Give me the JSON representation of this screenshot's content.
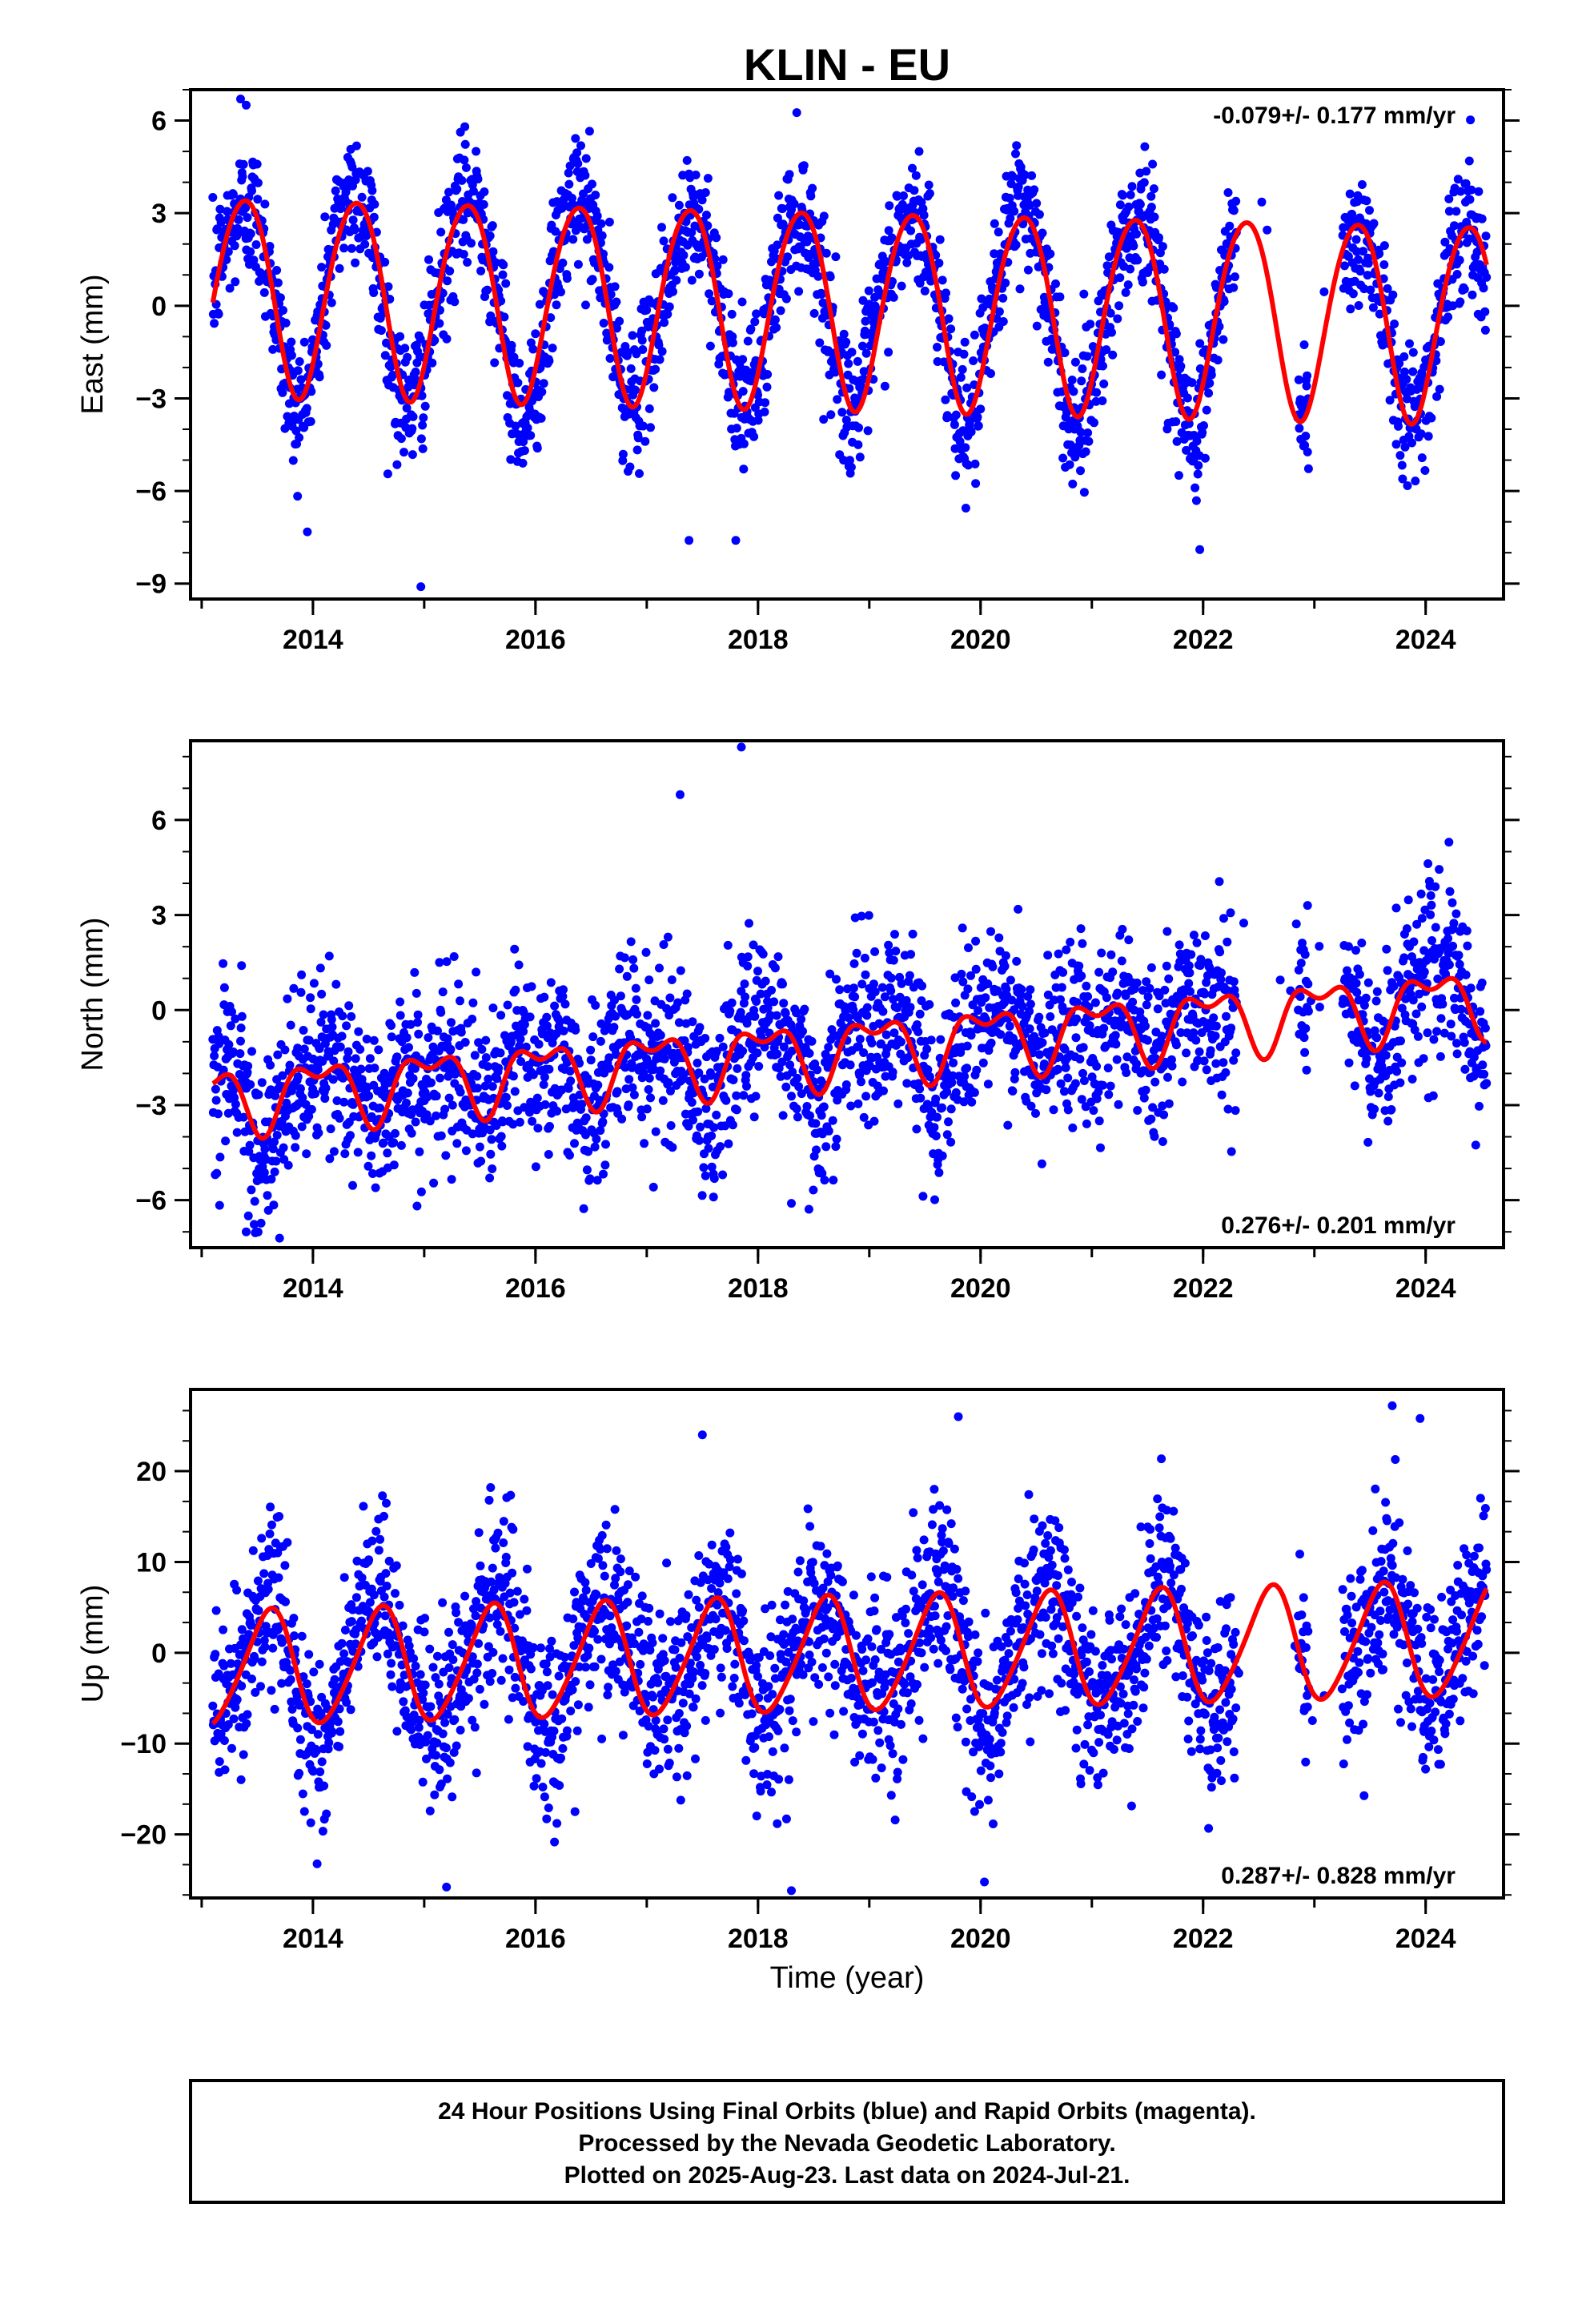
{
  "title": "KLIN - EU",
  "xlabel": "Time (year)",
  "footer": {
    "line1": "24 Hour Positions Using Final Orbits (blue) and Rapid Orbits (magenta).",
    "line2": "Processed by the Nevada Geodetic Laboratory.",
    "line3": "Plotted on 2025-Aug-23. Last data on 2024-Jul-21."
  },
  "colors": {
    "points": "#0000ff",
    "model": "#ff0000",
    "axis": "#000000"
  },
  "chart_data": [
    {
      "type": "scatter",
      "component": "east",
      "ylabel": "East (mm)",
      "rate": "-0.079+/- 0.177 mm/yr",
      "rate_placement": "top-right",
      "xlim": [
        2012.9,
        2024.7
      ],
      "ylim": [
        -9.5,
        7
      ],
      "xticks": [
        2014,
        2016,
        2018,
        2020,
        2022,
        2024
      ],
      "yticks": [
        -9,
        -6,
        -3,
        0,
        3,
        6
      ],
      "yticklabels": [
        "−9",
        "−6",
        "−3",
        "0",
        "3",
        "6"
      ],
      "data_range": [
        2013.1,
        2024.55
      ],
      "gaps": [
        [
          2022.3,
          2022.85
        ],
        [
          2022.95,
          2023.25
        ]
      ],
      "model": {
        "offset": 0.0,
        "trend": -0.079,
        "t0": 2018.8,
        "amp": 3.2,
        "peak_phase": 0.38,
        "semi_amp": 0.25,
        "semi_phase": 0.1
      },
      "scatter_sigma": 1.1,
      "outliers": [
        [
          2014.97,
          -9.1
        ],
        [
          2017.38,
          -7.6
        ],
        [
          2017.8,
          -7.6
        ],
        [
          2021.97,
          -7.9
        ],
        [
          2013.35,
          6.7
        ],
        [
          2013.4,
          6.5
        ]
      ],
      "grid": false,
      "legend": "none"
    },
    {
      "type": "scatter",
      "component": "north",
      "ylabel": "North (mm)",
      "rate": "0.276+/- 0.201 mm/yr",
      "rate_placement": "bottom-right",
      "xlim": [
        2012.9,
        2024.7
      ],
      "ylim": [
        -7.5,
        8.5
      ],
      "xticks": [
        2014,
        2016,
        2018,
        2020,
        2022,
        2024
      ],
      "yticks": [
        -6,
        -3,
        0,
        3,
        6
      ],
      "yticklabels": [
        "−6",
        "−3",
        "0",
        "3",
        "6"
      ],
      "data_range": [
        2013.1,
        2024.55
      ],
      "gaps": [
        [
          2022.3,
          2022.85
        ],
        [
          2022.95,
          2023.25
        ]
      ],
      "model": {
        "offset": -1.2,
        "trend": 0.276,
        "t0": 2018.8,
        "amp": 0.9,
        "peak_phase": 0.05,
        "semi_amp": 0.5,
        "semi_phase": 0.3
      },
      "scatter_sigma": 1.35,
      "outliers": [
        [
          2017.85,
          8.3
        ],
        [
          2017.3,
          6.8
        ],
        [
          2013.4,
          -7.0
        ],
        [
          2013.7,
          -7.2
        ],
        [
          2018.3,
          -6.1
        ],
        [
          2017.6,
          -5.9
        ]
      ],
      "grid": false,
      "legend": "none"
    },
    {
      "type": "scatter",
      "component": "up",
      "ylabel": "Up (mm)",
      "rate": "0.287+/- 0.828 mm/yr",
      "rate_placement": "bottom-right",
      "xlim": [
        2012.9,
        2024.7
      ],
      "ylim": [
        -27,
        29
      ],
      "xticks": [
        2014,
        2016,
        2018,
        2020,
        2022,
        2024
      ],
      "yticks": [
        -20,
        -10,
        0,
        10,
        20
      ],
      "yticklabels": [
        "−20",
        "−10",
        "0",
        "10",
        "20"
      ],
      "data_range": [
        2013.1,
        2024.55
      ],
      "gaps": [
        [
          2022.3,
          2022.85
        ],
        [
          2022.95,
          2023.25
        ]
      ],
      "model": {
        "offset": -0.2,
        "trend": 0.287,
        "t0": 2018.8,
        "amp": 6.2,
        "peak_phase": 0.6,
        "semi_amp": 0.8,
        "semi_phase": 0.2
      },
      "scatter_sigma": 4.8,
      "outliers": [
        [
          2015.2,
          -25.8
        ],
        [
          2018.3,
          -26.2
        ],
        [
          2019.8,
          26.0
        ],
        [
          2023.7,
          27.2
        ],
        [
          2017.5,
          24.0
        ],
        [
          2023.95,
          25.8
        ]
      ],
      "grid": false,
      "legend": "none"
    }
  ]
}
